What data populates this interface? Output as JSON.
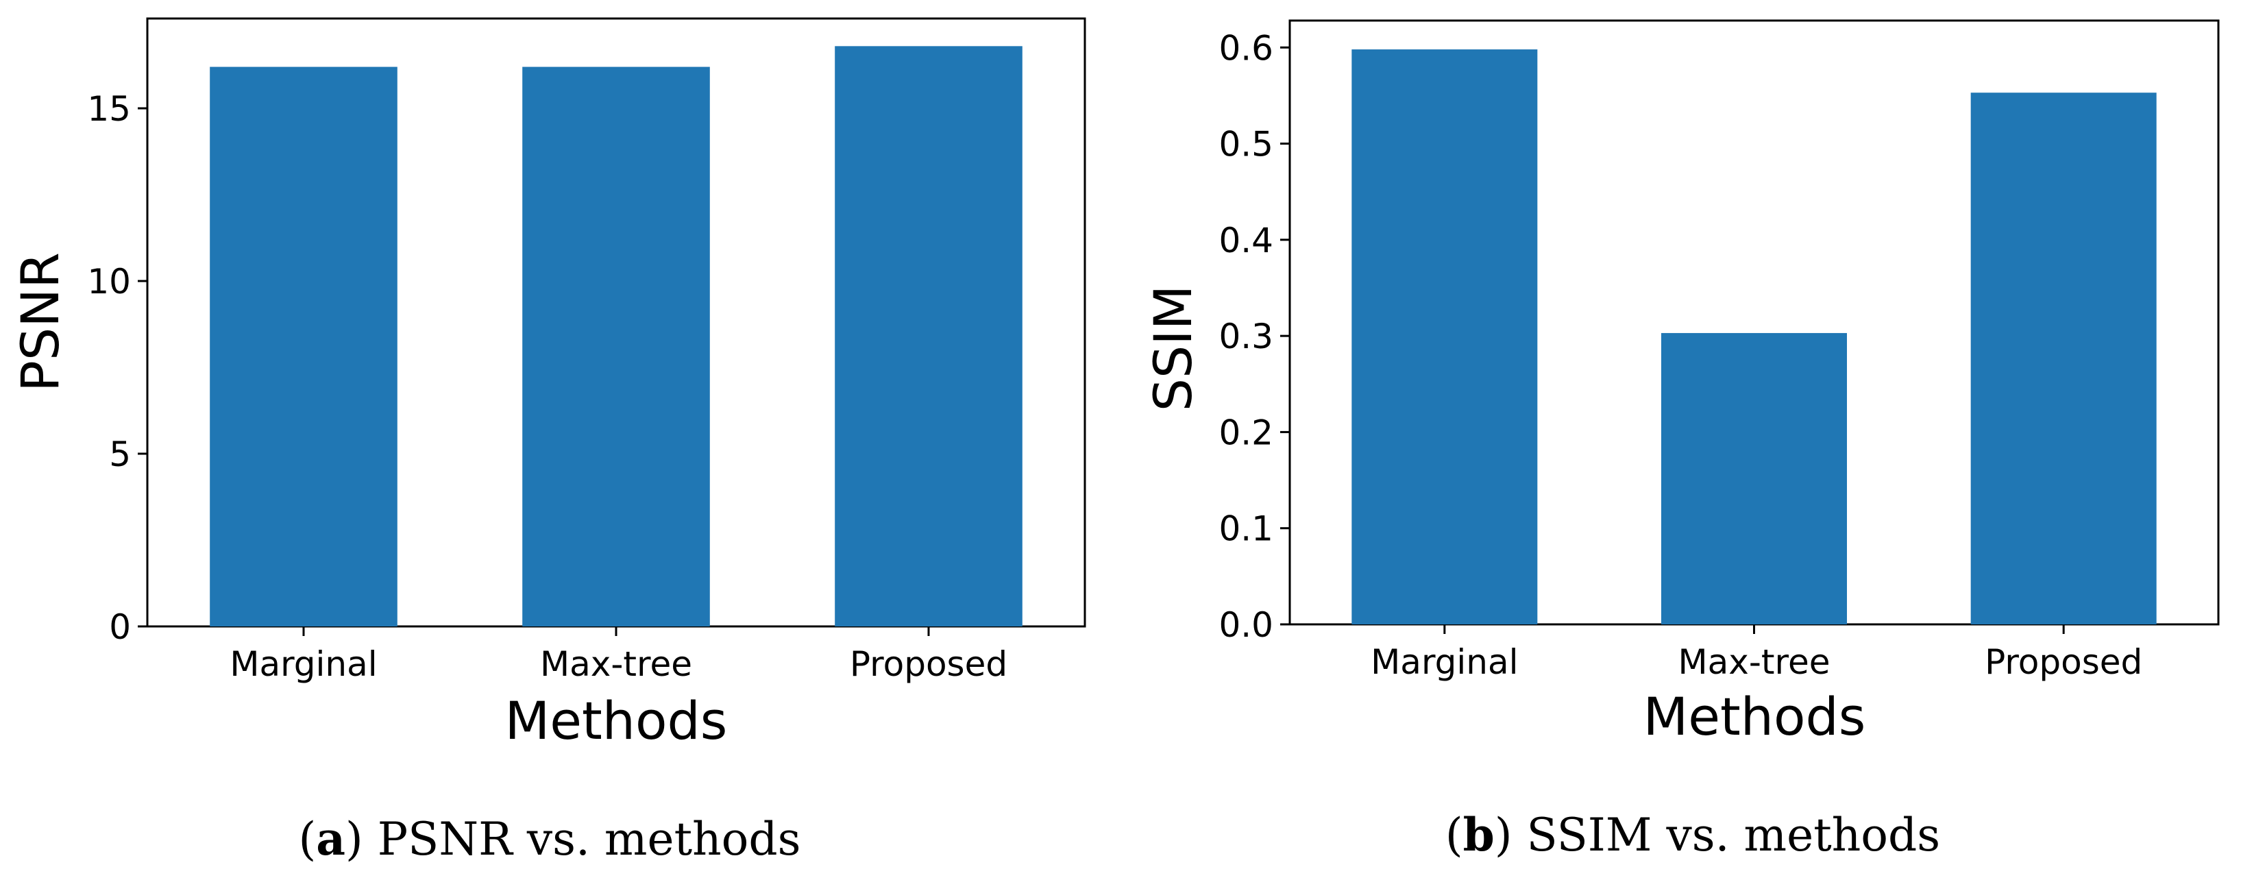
{
  "chart_data": [
    {
      "type": "bar",
      "categories": [
        "Marginal",
        "Max-tree",
        "Proposed"
      ],
      "values": [
        16.2,
        16.2,
        16.8
      ],
      "xlabel": "Methods",
      "ylabel": "PSNR",
      "ylim": [
        0,
        17.6
      ],
      "yticks": [
        0,
        5,
        10,
        15
      ],
      "ytick_labels": [
        "0",
        "5",
        "10",
        "15"
      ],
      "bar_color": "#2077b4",
      "caption": {
        "tag": "a",
        "text": " PSNR vs. methods"
      }
    },
    {
      "type": "bar",
      "categories": [
        "Marginal",
        "Max-tree",
        "Proposed"
      ],
      "values": [
        0.598,
        0.303,
        0.553
      ],
      "xlabel": "Methods",
      "ylabel": "SSIM",
      "ylim": [
        0,
        0.628
      ],
      "yticks": [
        0.0,
        0.1,
        0.2,
        0.3,
        0.4,
        0.5,
        0.6
      ],
      "ytick_labels": [
        "0.0",
        "0.1",
        "0.2",
        "0.3",
        "0.4",
        "0.5",
        "0.6"
      ],
      "bar_color": "#2077b4",
      "caption": {
        "tag": "b",
        "text": " SSIM vs. methods"
      }
    }
  ]
}
